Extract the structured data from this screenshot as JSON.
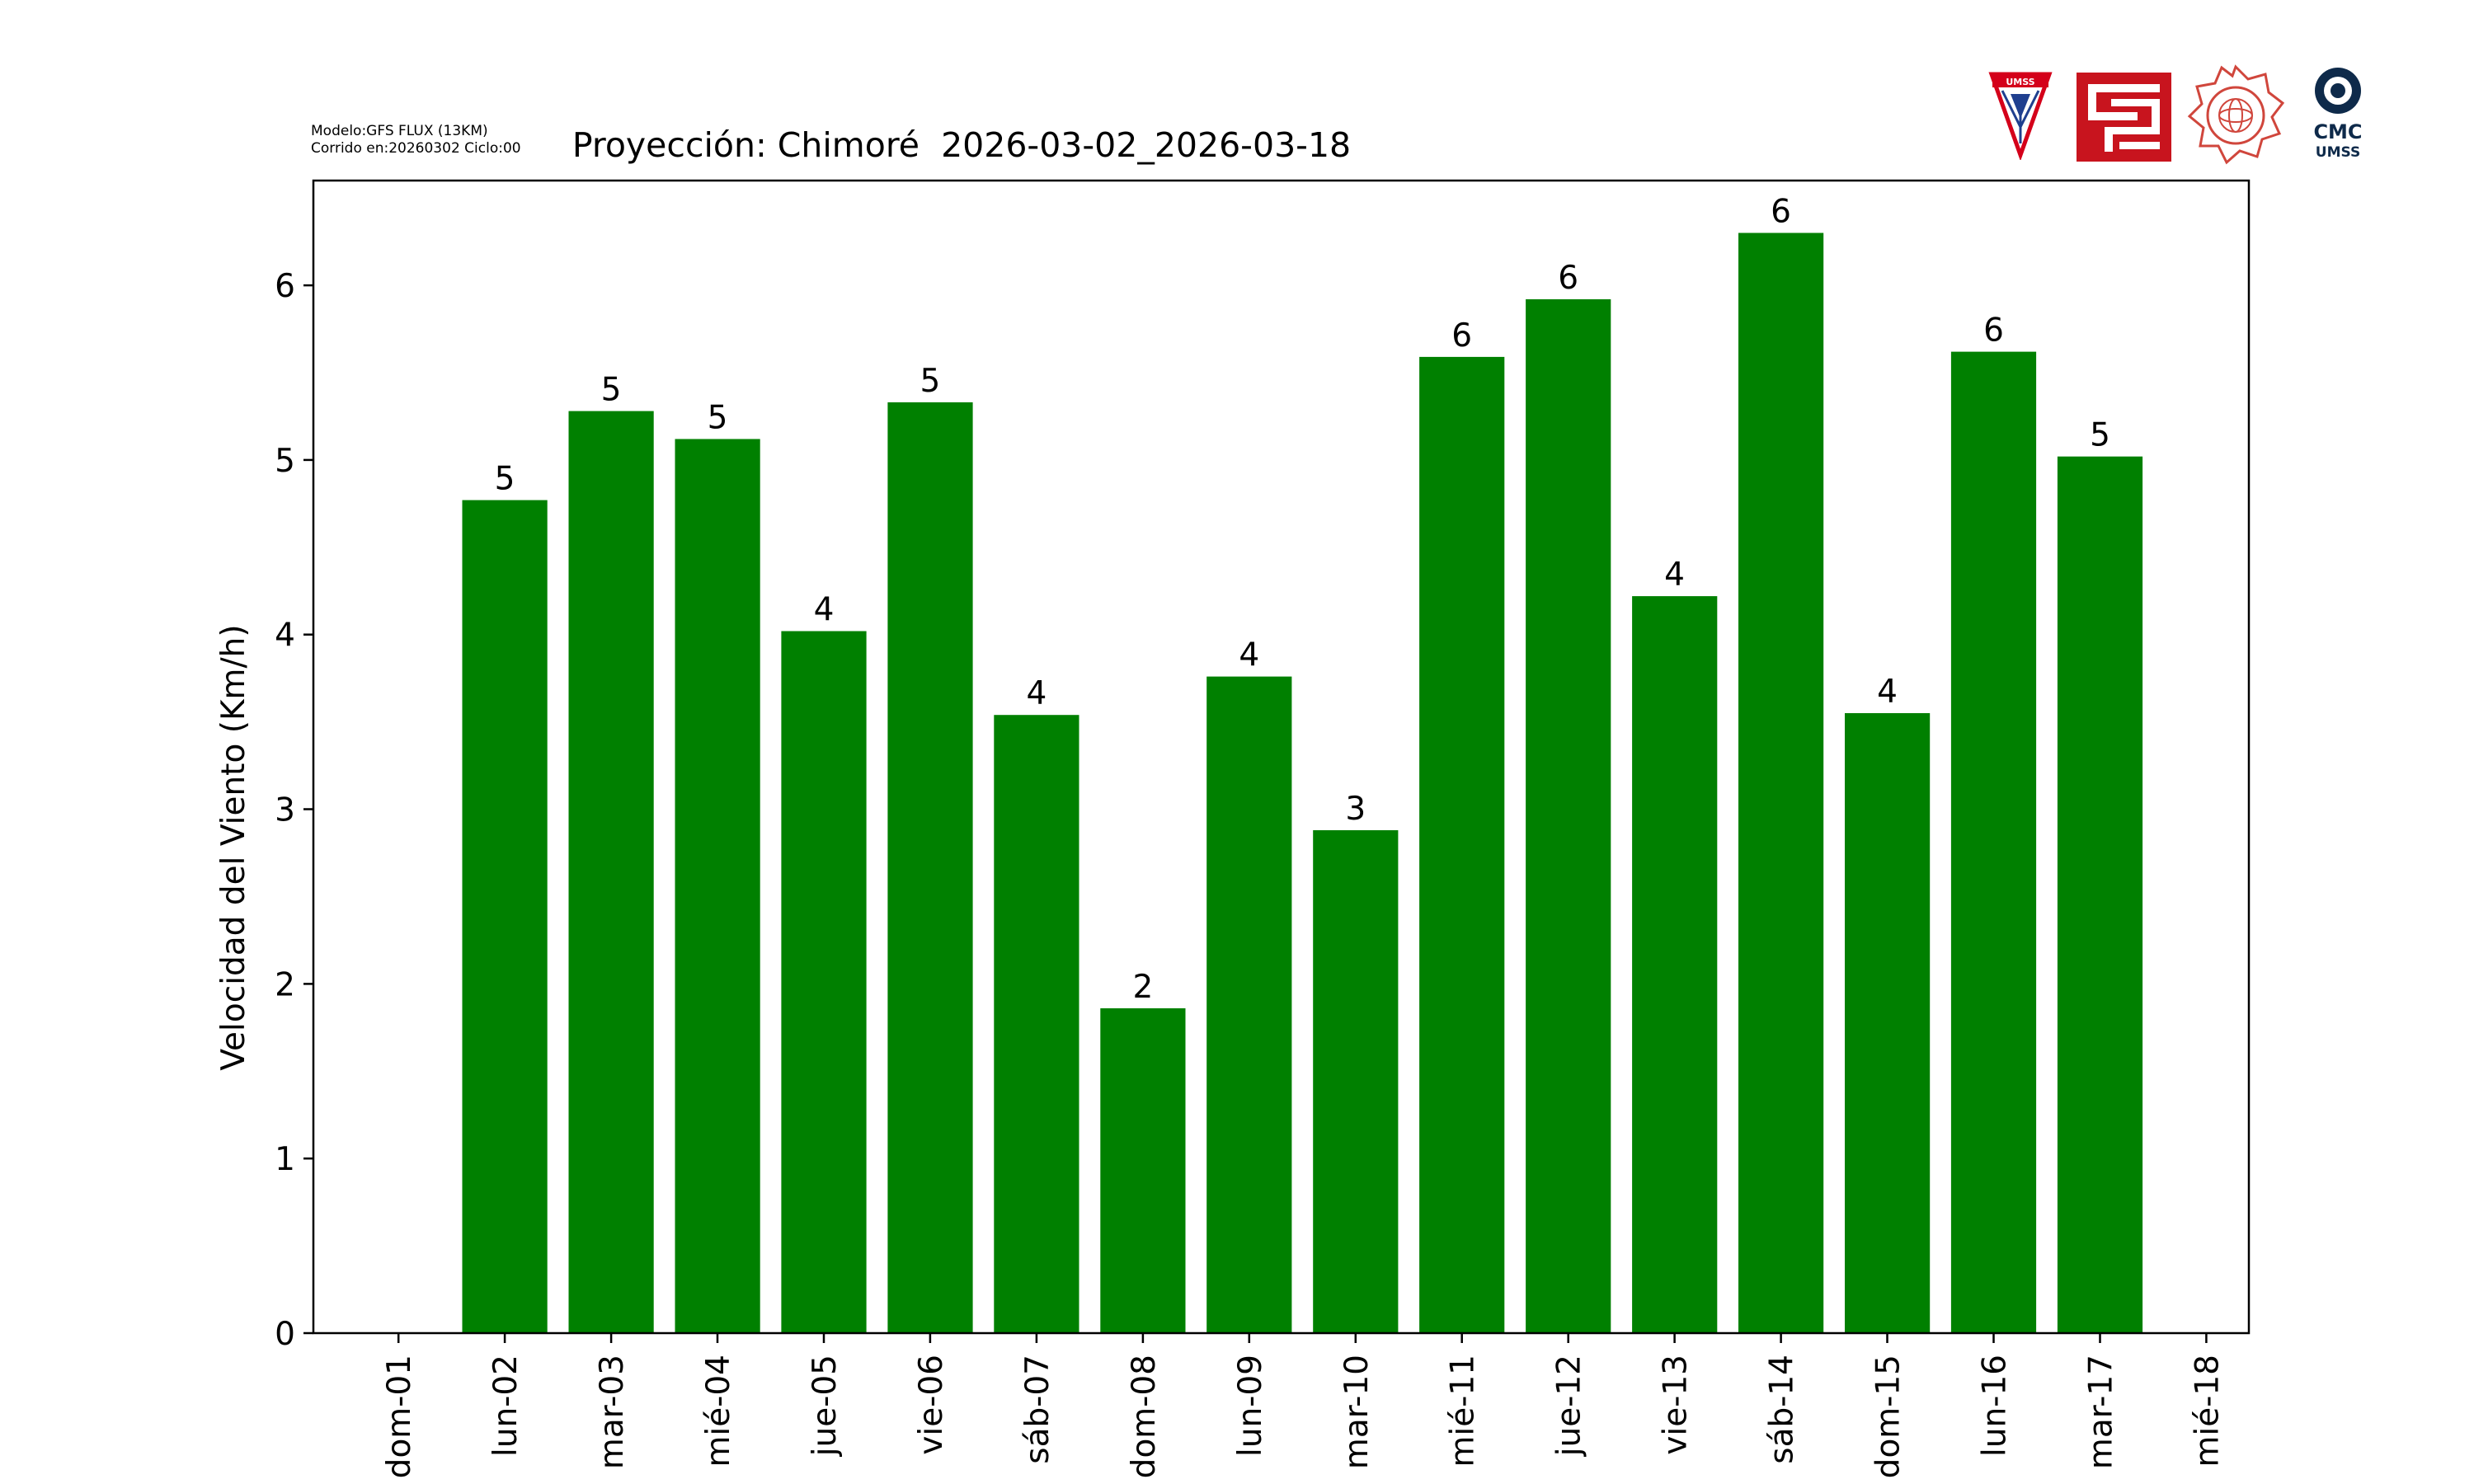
{
  "header": {
    "model_line": "Modelo:GFS FLUX (13KM)",
    "run_line": "Corrido en:20260302 Ciclo:00"
  },
  "logos": {
    "umss_text": "UMSS",
    "cmc_text": "CMC",
    "cmc_sub": "UMSS",
    "colors": {
      "umss_red": "#d4001a",
      "umss_blue": "#1f3f8f",
      "fcyt_red": "#c8141e",
      "fisica_red": "#d0463c",
      "cmc_navy": "#0e2a4a"
    }
  },
  "chart_data": {
    "type": "bar",
    "title": "Proyección: Chimoré  2026-03-02_2026-03-18",
    "xlabel": "",
    "ylabel": "Velocidad del Viento (Km/h)",
    "x_ticks": [
      "dom-01",
      "lun-02",
      "mar-03",
      "mié-04",
      "jue-05",
      "vie-06",
      "sáb-07",
      "dom-08",
      "lun-09",
      "mar-10",
      "mié-11",
      "jue-12",
      "vie-13",
      "sáb-14",
      "dom-15",
      "lun-16",
      "mar-17",
      "mié-18"
    ],
    "categories": [
      "lun-02",
      "mar-03",
      "mié-04",
      "jue-05",
      "vie-06",
      "sáb-07",
      "dom-08",
      "lun-09",
      "mar-10",
      "mié-11",
      "jue-12",
      "vie-13",
      "sáb-14",
      "dom-15",
      "lun-16",
      "mar-17"
    ],
    "values": [
      4.77,
      5.28,
      5.12,
      4.02,
      5.33,
      3.54,
      1.86,
      3.76,
      2.88,
      5.59,
      5.92,
      4.22,
      6.3,
      3.55,
      5.62,
      5.02
    ],
    "data_labels": [
      "5",
      "5",
      "5",
      "4",
      "5",
      "4",
      "2",
      "4",
      "3",
      "6",
      "6",
      "4",
      "6",
      "4",
      "6",
      "5"
    ],
    "y_ticks": [
      0,
      1,
      2,
      3,
      4,
      5,
      6
    ],
    "ylim": [
      0,
      6.6
    ],
    "grid": false,
    "bar_color": "#008000"
  }
}
